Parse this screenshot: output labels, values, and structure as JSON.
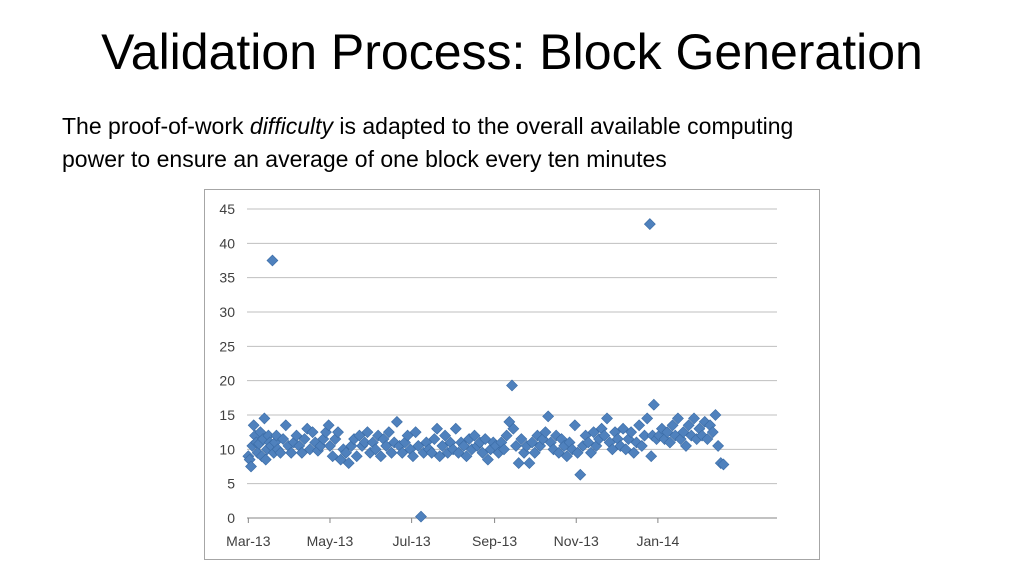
{
  "slide": {
    "title": "Validation Process: Block Generation",
    "line1_pre": "The proof-of-work ",
    "line1_em": "difficulty",
    "line1_post": " is adapted to the overall available computing",
    "line2": "power to ensure an average of one block every ten minutes"
  },
  "chart_data": {
    "type": "scatter",
    "title": "",
    "xlabel": "",
    "ylabel": "",
    "ylim": [
      0,
      45
    ],
    "y_ticks": [
      0,
      5,
      10,
      15,
      20,
      25,
      30,
      35,
      40,
      45
    ],
    "x_ticks": [
      "Mar-13",
      "May-13",
      "Jul-13",
      "Sep-13",
      "Nov-13",
      "Jan-14"
    ],
    "xlim": [
      "2013-02-28",
      "2014-03-31"
    ],
    "grid": true,
    "legend": "none",
    "marker": "diamond",
    "color": "#4f81bd",
    "points": [
      [
        "2013-03-01",
        9.0
      ],
      [
        "2013-03-02",
        8.5
      ],
      [
        "2013-03-03",
        7.5
      ],
      [
        "2013-03-04",
        10.5
      ],
      [
        "2013-03-05",
        13.5
      ],
      [
        "2013-03-06",
        12.0
      ],
      [
        "2013-03-07",
        11.0
      ],
      [
        "2013-03-08",
        9.5
      ],
      [
        "2013-03-09",
        10.8
      ],
      [
        "2013-03-10",
        12.5
      ],
      [
        "2013-03-11",
        9.0
      ],
      [
        "2013-03-12",
        11.5
      ],
      [
        "2013-03-13",
        14.5
      ],
      [
        "2013-03-14",
        8.5
      ],
      [
        "2013-03-15",
        10.0
      ],
      [
        "2013-03-16",
        12.0
      ],
      [
        "2013-03-17",
        11.0
      ],
      [
        "2013-03-18",
        10.5
      ],
      [
        "2013-03-19",
        37.5
      ],
      [
        "2013-03-20",
        9.5
      ],
      [
        "2013-03-21",
        11.0
      ],
      [
        "2013-03-22",
        12.0
      ],
      [
        "2013-03-23",
        10.0
      ],
      [
        "2013-03-25",
        9.5
      ],
      [
        "2013-03-27",
        11.5
      ],
      [
        "2013-03-29",
        13.5
      ],
      [
        "2013-03-31",
        10.5
      ],
      [
        "2013-04-02",
        9.5
      ],
      [
        "2013-04-04",
        11.0
      ],
      [
        "2013-04-06",
        12.0
      ],
      [
        "2013-04-08",
        10.5
      ],
      [
        "2013-04-10",
        9.5
      ],
      [
        "2013-04-12",
        11.5
      ],
      [
        "2013-04-14",
        13.0
      ],
      [
        "2013-04-16",
        10.0
      ],
      [
        "2013-04-18",
        12.5
      ],
      [
        "2013-04-20",
        11.0
      ],
      [
        "2013-04-22",
        9.8
      ],
      [
        "2013-04-24",
        10.5
      ],
      [
        "2013-04-26",
        11.5
      ],
      [
        "2013-04-28",
        12.5
      ],
      [
        "2013-04-30",
        13.5
      ],
      [
        "2013-05-01",
        10.5
      ],
      [
        "2013-05-03",
        9.0
      ],
      [
        "2013-05-05",
        11.5
      ],
      [
        "2013-05-07",
        12.5
      ],
      [
        "2013-05-09",
        8.5
      ],
      [
        "2013-05-11",
        10.0
      ],
      [
        "2013-05-13",
        9.5
      ],
      [
        "2013-05-15",
        8.0
      ],
      [
        "2013-05-17",
        10.5
      ],
      [
        "2013-05-19",
        11.5
      ],
      [
        "2013-05-21",
        9.0
      ],
      [
        "2013-05-23",
        12.0
      ],
      [
        "2013-05-25",
        10.5
      ],
      [
        "2013-05-27",
        11.0
      ],
      [
        "2013-05-29",
        12.5
      ],
      [
        "2013-05-31",
        9.5
      ],
      [
        "2013-06-02",
        11.0
      ],
      [
        "2013-06-04",
        10.0
      ],
      [
        "2013-06-06",
        12.0
      ],
      [
        "2013-06-08",
        9.0
      ],
      [
        "2013-06-10",
        11.5
      ],
      [
        "2013-06-12",
        10.5
      ],
      [
        "2013-06-14",
        12.5
      ],
      [
        "2013-06-16",
        9.5
      ],
      [
        "2013-06-18",
        11.0
      ],
      [
        "2013-06-20",
        14.0
      ],
      [
        "2013-06-22",
        10.5
      ],
      [
        "2013-06-24",
        9.5
      ],
      [
        "2013-06-26",
        11.0
      ],
      [
        "2013-06-28",
        12.0
      ],
      [
        "2013-06-30",
        10.0
      ],
      [
        "2013-07-02",
        9.0
      ],
      [
        "2013-07-04",
        12.5
      ],
      [
        "2013-07-06",
        10.5
      ],
      [
        "2013-07-08",
        0.2
      ],
      [
        "2013-07-10",
        9.5
      ],
      [
        "2013-07-12",
        11.0
      ],
      [
        "2013-07-14",
        10.0
      ],
      [
        "2013-07-16",
        9.5
      ],
      [
        "2013-07-18",
        11.5
      ],
      [
        "2013-07-20",
        13.0
      ],
      [
        "2013-07-22",
        9.0
      ],
      [
        "2013-07-24",
        10.5
      ],
      [
        "2013-07-26",
        12.0
      ],
      [
        "2013-07-28",
        9.5
      ],
      [
        "2013-07-30",
        11.0
      ],
      [
        "2013-08-01",
        10.0
      ],
      [
        "2013-08-03",
        13.0
      ],
      [
        "2013-08-05",
        9.5
      ],
      [
        "2013-08-07",
        11.0
      ],
      [
        "2013-08-09",
        10.5
      ],
      [
        "2013-08-11",
        9.0
      ],
      [
        "2013-08-13",
        11.5
      ],
      [
        "2013-08-15",
        10.0
      ],
      [
        "2013-08-17",
        12.0
      ],
      [
        "2013-08-19",
        10.5
      ],
      [
        "2013-08-21",
        11.0
      ],
      [
        "2013-08-23",
        9.5
      ],
      [
        "2013-08-25",
        11.5
      ],
      [
        "2013-08-27",
        8.5
      ],
      [
        "2013-08-29",
        10.0
      ],
      [
        "2013-08-31",
        11.0
      ],
      [
        "2013-09-02",
        10.5
      ],
      [
        "2013-09-04",
        9.5
      ],
      [
        "2013-09-06",
        11.0
      ],
      [
        "2013-09-08",
        10.0
      ],
      [
        "2013-09-10",
        12.0
      ],
      [
        "2013-09-12",
        14.0
      ],
      [
        "2013-09-14",
        19.3
      ],
      [
        "2013-09-15",
        13.0
      ],
      [
        "2013-09-17",
        10.5
      ],
      [
        "2013-09-19",
        8.0
      ],
      [
        "2013-09-21",
        11.5
      ],
      [
        "2013-09-23",
        9.5
      ],
      [
        "2013-09-25",
        10.5
      ],
      [
        "2013-09-27",
        8.0
      ],
      [
        "2013-09-29",
        11.0
      ],
      [
        "2013-10-01",
        9.5
      ],
      [
        "2013-10-03",
        12.0
      ],
      [
        "2013-10-05",
        10.5
      ],
      [
        "2013-10-07",
        11.5
      ],
      [
        "2013-10-09",
        12.5
      ],
      [
        "2013-10-11",
        14.8
      ],
      [
        "2013-10-13",
        11.0
      ],
      [
        "2013-10-15",
        10.0
      ],
      [
        "2013-10-17",
        12.0
      ],
      [
        "2013-10-19",
        9.5
      ],
      [
        "2013-10-21",
        11.5
      ],
      [
        "2013-10-23",
        10.5
      ],
      [
        "2013-10-25",
        9.0
      ],
      [
        "2013-10-27",
        11.0
      ],
      [
        "2013-10-29",
        10.0
      ],
      [
        "2013-10-31",
        13.5
      ],
      [
        "2013-11-02",
        9.5
      ],
      [
        "2013-11-04",
        6.3
      ],
      [
        "2013-11-06",
        10.5
      ],
      [
        "2013-11-08",
        12.0
      ],
      [
        "2013-11-10",
        11.0
      ],
      [
        "2013-11-12",
        9.5
      ],
      [
        "2013-11-14",
        12.5
      ],
      [
        "2013-11-16",
        10.5
      ],
      [
        "2013-11-18",
        11.5
      ],
      [
        "2013-11-20",
        13.0
      ],
      [
        "2013-11-22",
        12.0
      ],
      [
        "2013-11-24",
        14.5
      ],
      [
        "2013-11-26",
        11.0
      ],
      [
        "2013-11-28",
        10.0
      ],
      [
        "2013-11-30",
        12.5
      ],
      [
        "2013-12-02",
        11.5
      ],
      [
        "2013-12-04",
        10.5
      ],
      [
        "2013-12-06",
        13.0
      ],
      [
        "2013-12-08",
        10.0
      ],
      [
        "2013-12-10",
        11.5
      ],
      [
        "2013-12-12",
        12.5
      ],
      [
        "2013-12-14",
        9.5
      ],
      [
        "2013-12-16",
        11.0
      ],
      [
        "2013-12-18",
        13.5
      ],
      [
        "2013-12-20",
        10.5
      ],
      [
        "2013-12-22",
        12.0
      ],
      [
        "2013-12-24",
        14.5
      ],
      [
        "2013-12-26",
        42.8
      ],
      [
        "2013-12-27",
        9.0
      ],
      [
        "2013-12-28",
        12.0
      ],
      [
        "2013-12-29",
        16.5
      ],
      [
        "2013-12-31",
        11.5
      ],
      [
        "2014-01-02",
        12.0
      ],
      [
        "2014-01-04",
        13.0
      ],
      [
        "2014-01-06",
        11.5
      ],
      [
        "2014-01-08",
        12.5
      ],
      [
        "2014-01-10",
        11.0
      ],
      [
        "2014-01-12",
        13.5
      ],
      [
        "2014-01-14",
        12.0
      ],
      [
        "2014-01-16",
        14.5
      ],
      [
        "2014-01-18",
        11.5
      ],
      [
        "2014-01-20",
        12.5
      ],
      [
        "2014-01-22",
        10.5
      ],
      [
        "2014-01-24",
        13.5
      ],
      [
        "2014-01-26",
        12.0
      ],
      [
        "2014-01-28",
        14.5
      ],
      [
        "2014-01-30",
        11.5
      ],
      [
        "2014-02-01",
        13.0
      ],
      [
        "2014-02-03",
        12.0
      ],
      [
        "2014-02-05",
        14.0
      ],
      [
        "2014-02-07",
        11.5
      ],
      [
        "2014-02-09",
        13.5
      ],
      [
        "2014-02-11",
        12.5
      ],
      [
        "2014-02-13",
        15.0
      ],
      [
        "2014-02-15",
        10.5
      ],
      [
        "2014-02-17",
        8.0
      ],
      [
        "2014-02-19",
        7.8
      ]
    ]
  }
}
